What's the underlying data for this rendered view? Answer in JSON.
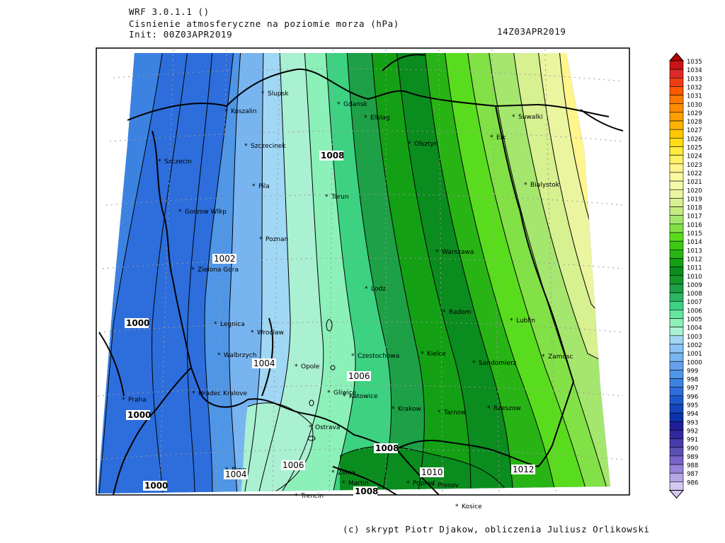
{
  "header": {
    "model": "WRF 3.0.1.1 ()",
    "variable": "Cisnienie atmosferyczne na poziomie morza (hPa)",
    "init": "Init: 00Z03APR2019",
    "valid": "14Z03APR2019"
  },
  "credit": "(c) skrypt Piotr Djakow, obliczenia Juliusz Orlikowski",
  "cities": [
    {
      "name": "Slupsk"
    },
    {
      "name": "Koszalin"
    },
    {
      "name": "Gdansk"
    },
    {
      "name": "Elblag"
    },
    {
      "name": "Szczecinek"
    },
    {
      "name": "Szczecin"
    },
    {
      "name": "Olsztyn"
    },
    {
      "name": "Suwalki"
    },
    {
      "name": "Elk"
    },
    {
      "name": "Pila"
    },
    {
      "name": "Torun"
    },
    {
      "name": "Bialystok"
    },
    {
      "name": "Gorzow Wlkp"
    },
    {
      "name": "Poznan"
    },
    {
      "name": "Warszawa"
    },
    {
      "name": "Zielona Gora"
    },
    {
      "name": "Lodz"
    },
    {
      "name": "Radom"
    },
    {
      "name": "Lublin"
    },
    {
      "name": "Legnica"
    },
    {
      "name": "Wroclaw"
    },
    {
      "name": "Walbrzych"
    },
    {
      "name": "Czestochowa"
    },
    {
      "name": "Kielce"
    },
    {
      "name": "Zamosc"
    },
    {
      "name": "Opole"
    },
    {
      "name": "Sandomierz"
    },
    {
      "name": "Hradec Kralove"
    },
    {
      "name": "Gliwice"
    },
    {
      "name": "Katowice"
    },
    {
      "name": "Krakow"
    },
    {
      "name": "Rzeszow"
    },
    {
      "name": "Praha"
    },
    {
      "name": "Tarnow"
    },
    {
      "name": "Ostrava"
    },
    {
      "name": "Brno"
    },
    {
      "name": "Zilina"
    },
    {
      "name": "Martin"
    },
    {
      "name": "Poprad"
    },
    {
      "name": "Presov"
    },
    {
      "name": "Trencin"
    },
    {
      "name": "Kosice"
    }
  ],
  "contour_labels": [
    "1008",
    "1002",
    "1000",
    "1004",
    "1006",
    "1000",
    "1008",
    "1010",
    "1006",
    "1004",
    "1000",
    "1008",
    "1012"
  ],
  "legend": {
    "levels": [
      "1035",
      "1034",
      "1033",
      "1032",
      "1031",
      "1030",
      "1029",
      "1028",
      "1027",
      "1026",
      "1025",
      "1024",
      "1023",
      "1022",
      "1021",
      "1020",
      "1019",
      "1018",
      "1017",
      "1016",
      "1015",
      "1014",
      "1013",
      "1012",
      "1011",
      "1010",
      "1009",
      "1008",
      "1007",
      "1006",
      "1005",
      "1004",
      "1003",
      "1002",
      "1001",
      "1000",
      "999",
      "998",
      "997",
      "996",
      "995",
      "994",
      "993",
      "992",
      "991",
      "990",
      "989",
      "988",
      "987",
      "986"
    ],
    "colors": [
      "#b40000",
      "#c81414",
      "#dc2828",
      "#f03c14",
      "#ff5a00",
      "#ff7800",
      "#ff8c00",
      "#ffa000",
      "#ffb400",
      "#ffc800",
      "#ffdc14",
      "#ffeb3c",
      "#fff064",
      "#fff58c",
      "#fafaa0",
      "#f5faaa",
      "#ebf5a0",
      "#d7f091",
      "#c3eb82",
      "#a5e66e",
      "#82e146",
      "#5adc1e",
      "#3cc814",
      "#28b414",
      "#14a014",
      "#0a8c1e",
      "#149628",
      "#1ea046",
      "#2db464",
      "#3cd282",
      "#64e6a0",
      "#8cf0b9",
      "#aaf0d2",
      "#a0d7f5",
      "#8cc3f5",
      "#78b4f0",
      "#64a0eb",
      "#5096e6",
      "#3c82e1",
      "#2d6edc",
      "#1e5acd",
      "#1446be",
      "#0a32aa",
      "#1e1e96",
      "#3228a0",
      "#463caa",
      "#5a50b4",
      "#7864c8",
      "#9682d7",
      "#b4a5e6",
      "#d2c8f0"
    ]
  }
}
